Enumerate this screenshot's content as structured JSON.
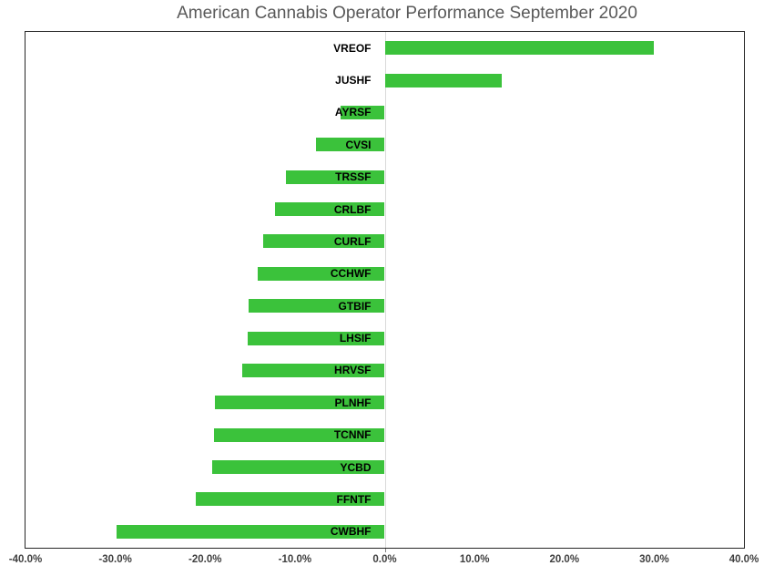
{
  "chart_data": {
    "type": "bar",
    "orientation": "horizontal",
    "title": "American Cannabis Operator Performance September 2020",
    "categories": [
      "VREOF",
      "JUSHF",
      "AYRSF",
      "CVSI",
      "TRSSF",
      "CRLBF",
      "CURLF",
      "CCHWF",
      "GTBIF",
      "LHSIF",
      "HRVSF",
      "PLNHF",
      "TCNNF",
      "YCBD",
      "FFNTF",
      "CWBHF"
    ],
    "values": [
      30.0,
      13.0,
      -4.9,
      -7.7,
      -11.0,
      -12.2,
      -13.5,
      -14.1,
      -15.2,
      -15.3,
      -15.9,
      -18.9,
      -19.0,
      -19.2,
      -21.0,
      -29.9
    ],
    "value_unit": "%",
    "xlabel": "",
    "ylabel": "",
    "xlim": [
      -40,
      40
    ],
    "x_tick_values": [
      -40,
      -30,
      -20,
      -10,
      0,
      10,
      20,
      30,
      40
    ],
    "x_tick_labels": [
      "-40.0%",
      "-30.0%",
      "-20.0%",
      "-10.0%",
      "0.0%",
      "10.0%",
      "20.0%",
      "30.0%",
      "40.0%"
    ],
    "grid": "off",
    "legend": "none",
    "colors": {
      "bar_fill": "#3bc23b",
      "title_text": "#595959",
      "axis_label_text": "#404040",
      "category_label_text": "#000000",
      "plot_border": "#262626",
      "zero_line": "#d9d9d9",
      "background": "#ffffff"
    }
  }
}
